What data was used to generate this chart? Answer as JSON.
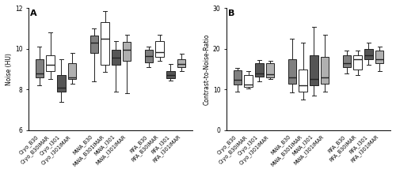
{
  "panel_A": {
    "title": "A",
    "ylabel": "Noise (HU)",
    "ylim": [
      6,
      12
    ],
    "yticks": [
      6,
      8,
      10,
      12
    ],
    "groups": [
      {
        "label": "Cryo_B30",
        "color": "#808080",
        "whislo": 8.2,
        "q1": 8.6,
        "med": 8.8,
        "q3": 9.5,
        "whishi": 10.1
      },
      {
        "label": "Cryo_B30iMAR",
        "color": "#ffffff",
        "whislo": 8.5,
        "q1": 8.9,
        "med": 9.2,
        "q3": 9.7,
        "whishi": 10.8
      },
      {
        "label": "Cryo_I301",
        "color": "#555555",
        "whislo": 7.4,
        "q1": 7.9,
        "med": 8.1,
        "q3": 8.7,
        "whishi": 9.5
      },
      {
        "label": "Cryo_I301iMAR",
        "color": "#b0b0b0",
        "whislo": 8.3,
        "q1": 8.5,
        "med": 8.6,
        "q3": 9.3,
        "whishi": 9.8
      },
      {
        "label": "MWA_B30",
        "color": "#808080",
        "whislo": 8.4,
        "q1": 9.8,
        "med": 10.3,
        "q3": 10.65,
        "whishi": 11.0
      },
      {
        "label": "MWA_B301iMAR",
        "color": "#ffffff",
        "whislo": 8.85,
        "q1": 9.2,
        "med": 10.5,
        "q3": 11.3,
        "whishi": 11.85
      },
      {
        "label": "MWA_I301",
        "color": "#555555",
        "whislo": 7.9,
        "q1": 9.2,
        "med": 9.55,
        "q3": 9.95,
        "whishi": 10.4
      },
      {
        "label": "MWA_I301iMAR",
        "color": "#b0b0b0",
        "whislo": 7.8,
        "q1": 9.4,
        "med": 9.95,
        "q3": 10.35,
        "whishi": 10.7
      },
      {
        "label": "RFA_B30",
        "color": "#808080",
        "whislo": 9.1,
        "q1": 9.35,
        "med": 9.65,
        "q3": 9.95,
        "whishi": 10.1
      },
      {
        "label": "RFA_B30iMAR",
        "color": "#ffffff",
        "whislo": 9.4,
        "q1": 9.6,
        "med": 9.85,
        "q3": 10.4,
        "whishi": 10.7
      },
      {
        "label": "RFA_I301",
        "color": "#555555",
        "whislo": 8.45,
        "q1": 8.55,
        "med": 8.7,
        "q3": 8.9,
        "whishi": 9.25
      },
      {
        "label": "RFA_I301iMAR",
        "color": "#b0b0b0",
        "whislo": 8.9,
        "q1": 9.1,
        "med": 9.25,
        "q3": 9.5,
        "whishi": 9.75
      }
    ],
    "positions": [
      1,
      2,
      3,
      4,
      6,
      7,
      8,
      9,
      11,
      12,
      13,
      14
    ]
  },
  "panel_B": {
    "title": "B",
    "ylabel": "Contrast-to-Noise-Ratio",
    "ylim": [
      0,
      30
    ],
    "yticks": [
      0,
      10,
      20,
      30
    ],
    "groups": [
      {
        "label": "Cryo_B30",
        "color": "#808080",
        "whislo": 9.5,
        "q1": 11.2,
        "med": 12.3,
        "q3": 14.8,
        "whishi": 15.4
      },
      {
        "label": "Cryo_B30iMAR",
        "color": "#ffffff",
        "whislo": 10.3,
        "q1": 10.7,
        "med": 11.3,
        "q3": 13.5,
        "whishi": 14.5
      },
      {
        "label": "Cryo_I301",
        "color": "#555555",
        "whislo": 12.0,
        "q1": 13.2,
        "med": 14.0,
        "q3": 16.5,
        "whishi": 17.2
      },
      {
        "label": "Cryo_I301iMAR",
        "color": "#b0b0b0",
        "whislo": 12.5,
        "q1": 13.0,
        "med": 13.8,
        "q3": 16.5,
        "whishi": 17.0
      },
      {
        "label": "MWA_B30",
        "color": "#808080",
        "whislo": 9.2,
        "q1": 11.5,
        "med": 13.0,
        "q3": 17.5,
        "whishi": 22.5
      },
      {
        "label": "MWA_B301iMAR",
        "color": "#ffffff",
        "whislo": 7.5,
        "q1": 9.5,
        "med": 11.0,
        "q3": 15.0,
        "whishi": 21.5
      },
      {
        "label": "MWA_I301",
        "color": "#555555",
        "whislo": 8.5,
        "q1": 11.0,
        "med": 12.5,
        "q3": 18.5,
        "whishi": 25.5
      },
      {
        "label": "MWA_I301iMAR",
        "color": "#b0b0b0",
        "whislo": 9.5,
        "q1": 11.5,
        "med": 13.0,
        "q3": 18.0,
        "whishi": 23.5
      },
      {
        "label": "RFA_B30",
        "color": "#808080",
        "whislo": 14.0,
        "q1": 15.5,
        "med": 16.5,
        "q3": 18.5,
        "whishi": 19.5
      },
      {
        "label": "RFA_B30iMAR",
        "color": "#ffffff",
        "whislo": 13.5,
        "q1": 15.0,
        "med": 17.5,
        "q3": 18.5,
        "whishi": 19.5
      },
      {
        "label": "RFA_I301",
        "color": "#555555",
        "whislo": 16.0,
        "q1": 17.5,
        "med": 18.5,
        "q3": 20.0,
        "whishi": 21.5
      },
      {
        "label": "RFA_I301iMAR",
        "color": "#b0b0b0",
        "whislo": 14.5,
        "q1": 16.5,
        "med": 17.5,
        "q3": 19.5,
        "whishi": 20.5
      }
    ],
    "positions": [
      1,
      2,
      3,
      4,
      6,
      7,
      8,
      9,
      11,
      12,
      13,
      14
    ]
  },
  "box_width": 0.75,
  "linewidth": 0.7,
  "label_fontsize": 4.8,
  "tick_fontsize": 5.5,
  "title_fontsize": 8,
  "ylabel_fontsize": 5.5,
  "background_color": "#ffffff",
  "box_edge_color": "#222222",
  "median_color": "#222222"
}
